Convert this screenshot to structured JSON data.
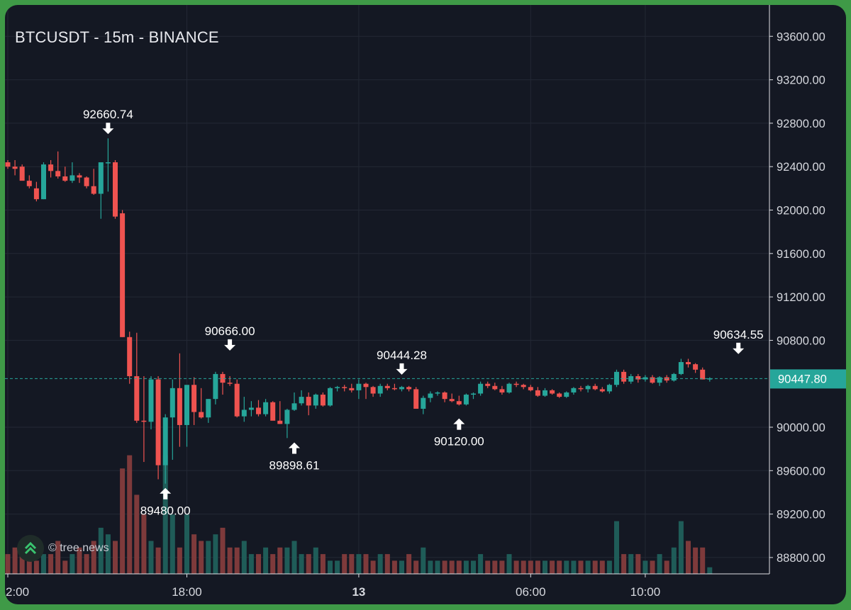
{
  "chart_data": {
    "type": "candlestick",
    "title": "BTCUSDT - 15m - BINANCE",
    "ylim": [
      88700,
      93760
    ],
    "y_ticks": [
      93600,
      93200,
      92800,
      92400,
      92000,
      91600,
      91200,
      90800,
      90000,
      89600,
      89200,
      88800
    ],
    "y_tick_labels": [
      "93600.00",
      "93200.00",
      "92800.00",
      "92400.00",
      "92000.00",
      "91600.00",
      "91200.00",
      "90800.00",
      "90000.00",
      "89600.00",
      "89200.00",
      "88800.00"
    ],
    "x_tick_labels": [
      {
        "label": "2:00",
        "bar": 0,
        "bold": false
      },
      {
        "label": "18:00",
        "bar": 25,
        "bold": false
      },
      {
        "label": "13",
        "bar": 49,
        "bold": true
      },
      {
        "label": "06:00",
        "bar": 73,
        "bold": false
      },
      {
        "label": "10:00",
        "bar": 89,
        "bold": false
      }
    ],
    "last_price": 90447.8,
    "last_price_label": "90447.80",
    "colors": {
      "up": "#26a69a",
      "down": "#ef5350",
      "up_volume": "#1f5c58",
      "down_volume": "#7e3a3b",
      "grid": "#232834",
      "axis_text": "#d6d8de",
      "price_line": "#26a69a"
    },
    "candles": [
      [
        92440,
        92460,
        92380,
        92400,
        3
      ],
      [
        92400,
        92460,
        92320,
        92380,
        4
      ],
      [
        92400,
        92420,
        92280,
        92270,
        3
      ],
      [
        92270,
        92320,
        92200,
        92220,
        3
      ],
      [
        92200,
        92260,
        92080,
        92100,
        2
      ],
      [
        92100,
        92440,
        92100,
        92420,
        3
      ],
      [
        92420,
        92460,
        92300,
        92360,
        3
      ],
      [
        92360,
        92540,
        92290,
        92310,
        5
      ],
      [
        92310,
        92400,
        92260,
        92270,
        2
      ],
      [
        92270,
        92440,
        92250,
        92320,
        3
      ],
      [
        92320,
        92340,
        92250,
        92300,
        4
      ],
      [
        92300,
        92310,
        92200,
        92220,
        3
      ],
      [
        92220,
        92380,
        92140,
        92150,
        5
      ],
      [
        92150,
        92430,
        91920,
        92440,
        7
      ],
      [
        92440,
        92660,
        92170,
        92440,
        6
      ],
      [
        92440,
        92460,
        91920,
        91940,
        5
      ],
      [
        91970,
        92000,
        90830,
        90830,
        16
      ],
      [
        90830,
        90880,
        90400,
        90470,
        18
      ],
      [
        90470,
        90870,
        90040,
        90060,
        12
      ],
      [
        90060,
        90470,
        89680,
        90050,
        9
      ],
      [
        90050,
        90470,
        89980,
        90440,
        5
      ],
      [
        90440,
        90470,
        89520,
        89650,
        4
      ],
      [
        89650,
        90120,
        89480,
        90090,
        18
      ],
      [
        90090,
        90440,
        89700,
        90360,
        9
      ],
      [
        90360,
        90680,
        89820,
        90020,
        4
      ],
      [
        90020,
        90380,
        89820,
        90390,
        9
      ],
      [
        90390,
        90460,
        90020,
        90140,
        6
      ],
      [
        90140,
        90360,
        90080,
        90090,
        5
      ],
      [
        90090,
        90260,
        90040,
        90260,
        5
      ],
      [
        90260,
        90510,
        90210,
        90490,
        6
      ],
      [
        90490,
        90510,
        90300,
        90410,
        7
      ],
      [
        90410,
        90470,
        90380,
        90400,
        4
      ],
      [
        90400,
        90440,
        90090,
        90100,
        4
      ],
      [
        90100,
        90280,
        90050,
        90160,
        5
      ],
      [
        90160,
        90240,
        90100,
        90180,
        3
      ],
      [
        90180,
        90250,
        90100,
        90120,
        3
      ],
      [
        90120,
        90260,
        90100,
        90230,
        4
      ],
      [
        90230,
        90240,
        90080,
        90060,
        3
      ],
      [
        90060,
        90240,
        90030,
        90030,
        4
      ],
      [
        90030,
        90170,
        89900,
        90160,
        4
      ],
      [
        90160,
        90320,
        90150,
        90220,
        5
      ],
      [
        90220,
        90340,
        90200,
        90280,
        3
      ],
      [
        90280,
        90320,
        90110,
        90200,
        3
      ],
      [
        90200,
        90310,
        90170,
        90300,
        4
      ],
      [
        90300,
        90320,
        90190,
        90200,
        3
      ],
      [
        90200,
        90370,
        90190,
        90360,
        2
      ],
      [
        90360,
        90380,
        90330,
        90370,
        2
      ],
      [
        90370,
        90390,
        90330,
        90360,
        3
      ],
      [
        90360,
        90400,
        90320,
        90340,
        3
      ],
      [
        90340,
        90440,
        90260,
        90400,
        3
      ],
      [
        90400,
        90410,
        90260,
        90370,
        3
      ],
      [
        90370,
        90380,
        90280,
        90310,
        2
      ],
      [
        90310,
        90400,
        90280,
        90380,
        3
      ],
      [
        90380,
        90400,
        90340,
        90360,
        3
      ],
      [
        90360,
        90400,
        90340,
        90350,
        2
      ],
      [
        90350,
        90380,
        90330,
        90370,
        2
      ],
      [
        90370,
        90380,
        90330,
        90350,
        3
      ],
      [
        90350,
        90370,
        90180,
        90170,
        2
      ],
      [
        90170,
        90290,
        90120,
        90270,
        4
      ],
      [
        90270,
        90330,
        90230,
        90310,
        2
      ],
      [
        90310,
        90330,
        90290,
        90320,
        2
      ],
      [
        90320,
        90330,
        90230,
        90260,
        2
      ],
      [
        90260,
        90310,
        90230,
        90240,
        2
      ],
      [
        90240,
        90290,
        90200,
        90210,
        2
      ],
      [
        90210,
        90310,
        90200,
        90300,
        2
      ],
      [
        90300,
        90320,
        90260,
        90310,
        2
      ],
      [
        90310,
        90420,
        90290,
        90400,
        3
      ],
      [
        90400,
        90420,
        90360,
        90380,
        2
      ],
      [
        90380,
        90410,
        90340,
        90350,
        2
      ],
      [
        90350,
        90380,
        90300,
        90320,
        2
      ],
      [
        90320,
        90410,
        90310,
        90400,
        3
      ],
      [
        90400,
        90420,
        90370,
        90390,
        2
      ],
      [
        90390,
        90400,
        90350,
        90370,
        2
      ],
      [
        90370,
        90390,
        90330,
        90340,
        2
      ],
      [
        90340,
        90370,
        90280,
        90290,
        2
      ],
      [
        90290,
        90360,
        90280,
        90340,
        2
      ],
      [
        90340,
        90350,
        90300,
        90310,
        2
      ],
      [
        90310,
        90320,
        90270,
        90280,
        2
      ],
      [
        90280,
        90330,
        90270,
        90320,
        2
      ],
      [
        90320,
        90370,
        90300,
        90360,
        2
      ],
      [
        90360,
        90380,
        90330,
        90350,
        2
      ],
      [
        90350,
        90390,
        90320,
        90380,
        2
      ],
      [
        90380,
        90400,
        90340,
        90350,
        2
      ],
      [
        90350,
        90370,
        90320,
        90330,
        2
      ],
      [
        90330,
        90400,
        90310,
        90390,
        2
      ],
      [
        90390,
        90530,
        90370,
        90510,
        8
      ],
      [
        90510,
        90530,
        90400,
        90420,
        3
      ],
      [
        90420,
        90490,
        90400,
        90470,
        3
      ],
      [
        90470,
        90490,
        90410,
        90440,
        3
      ],
      [
        90440,
        90480,
        90420,
        90460,
        2
      ],
      [
        90460,
        90480,
        90400,
        90410,
        2
      ],
      [
        90410,
        90470,
        90380,
        90460,
        3
      ],
      [
        90460,
        90480,
        90410,
        90430,
        2
      ],
      [
        90430,
        90500,
        90420,
        90490,
        4
      ],
      [
        90490,
        90630,
        90480,
        90600,
        8
      ],
      [
        90600,
        90630,
        90550,
        90580,
        5
      ],
      [
        90580,
        90590,
        90500,
        90530,
        4
      ],
      [
        90530,
        90550,
        90440,
        90440,
        4
      ],
      [
        90440,
        90460,
        90420,
        90450,
        1
      ]
    ],
    "annotations": [
      {
        "label": "92660.74",
        "bar": 14,
        "price": 92660.74,
        "type": "high"
      },
      {
        "label": "90666.00",
        "bar": 31,
        "price": 90666.0,
        "type": "high"
      },
      {
        "label": "90444.28",
        "bar": 55,
        "price": 90444.28,
        "type": "high"
      },
      {
        "label": "90634.55",
        "bar": 102,
        "price": 90634.55,
        "type": "high"
      },
      {
        "label": "89480.00",
        "bar": 22,
        "price": 89480.0,
        "type": "low"
      },
      {
        "label": "89898.61",
        "bar": 40,
        "price": 89898.61,
        "type": "low"
      },
      {
        "label": "90120.00",
        "bar": 63,
        "price": 90120.0,
        "type": "low"
      }
    ]
  },
  "watermark": {
    "text": "© tree.news",
    "icon": "double-chevron-up-icon"
  }
}
